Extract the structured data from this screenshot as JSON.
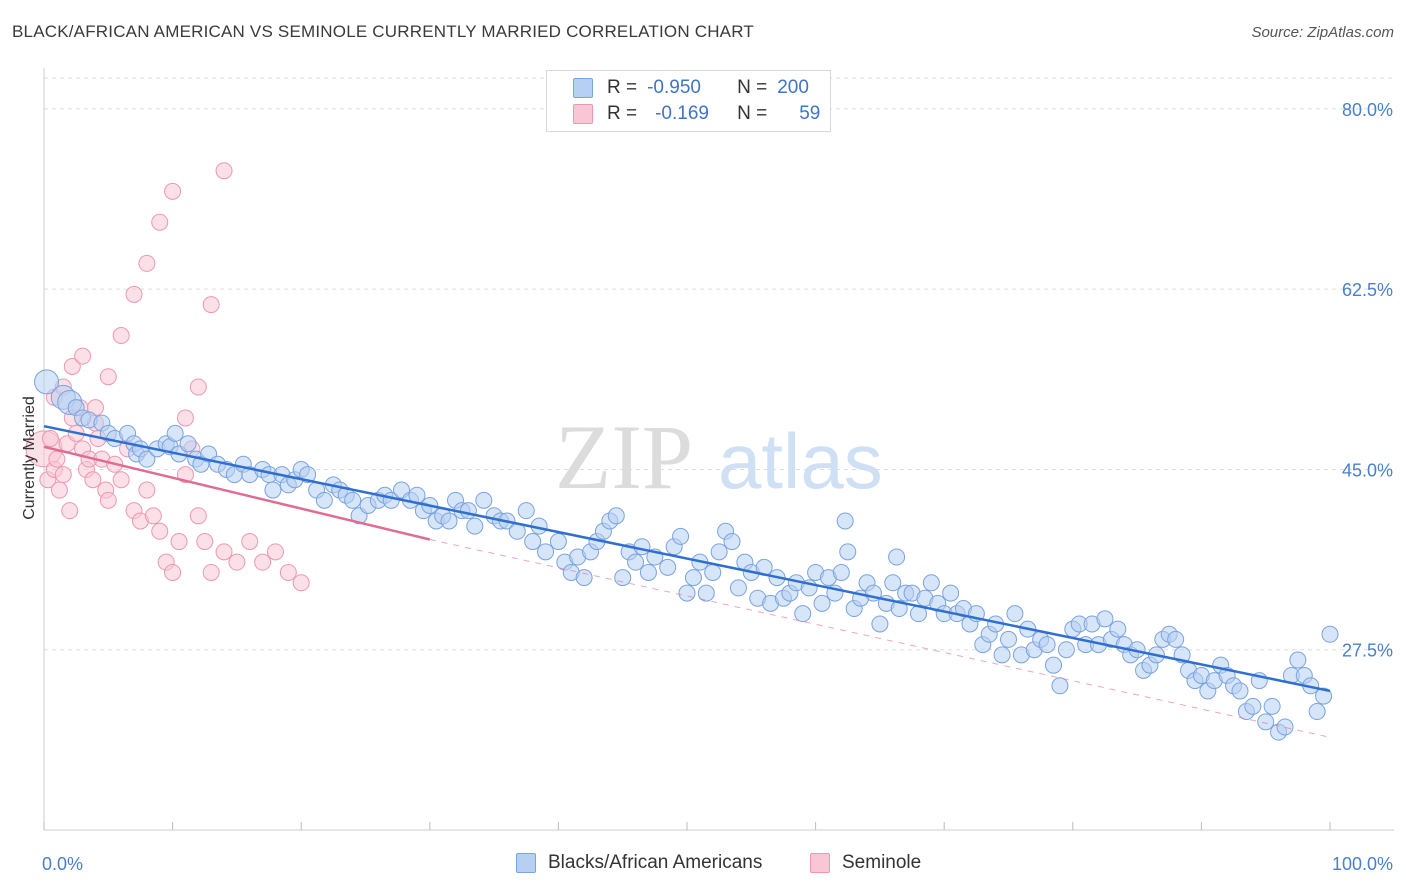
{
  "title": "BLACK/AFRICAN AMERICAN VS SEMINOLE CURRENTLY MARRIED CORRELATION CHART",
  "source": "Source: ZipAtlas.com",
  "watermark": {
    "zip": "ZIP",
    "atlas": "atlas"
  },
  "legend_top": [
    {
      "r_label": "R =",
      "r_value": "-0.950",
      "n_label": "N =",
      "n_value": "200",
      "color": "#8fb3e8"
    },
    {
      "r_label": "R =",
      "r_value": "-0.169",
      "n_label": "N =",
      "n_value": "59",
      "color": "#f4a7bf"
    }
  ],
  "colors": {
    "blue_fill": "#b7cff2",
    "blue_stroke": "#7aa3e0",
    "blue_line": "#2f6fd0",
    "pink_fill": "#f8c6d5",
    "pink_stroke": "#ef97b2",
    "pink_line": "#e06b93",
    "axis_text": "#4a7fcf",
    "grid": "#dddddd"
  },
  "chart_data": {
    "type": "scatter",
    "title": "BLACK/AFRICAN AMERICAN VS SEMINOLE CURRENTLY MARRIED CORRELATION CHART",
    "xlabel": "",
    "ylabel": "Currently Married",
    "xlim": [
      0,
      100
    ],
    "ylim": [
      10,
      83
    ],
    "x_tick_labels": [
      "0.0%",
      "100.0%"
    ],
    "y_ticks": [
      27.5,
      45.0,
      62.5,
      80.0
    ],
    "y_tick_labels": [
      "27.5%",
      "45.0%",
      "62.5%",
      "80.0%"
    ],
    "grid": true,
    "legend_position": "bottom",
    "series": [
      {
        "name": "Blacks/African Americans",
        "color": "#7aa3e0",
        "trend": {
          "x": [
            0,
            100
          ],
          "y": [
            49.2,
            23.5
          ]
        },
        "points": [
          [
            0.2,
            53.5
          ],
          [
            1.5,
            52
          ],
          [
            2,
            51.5
          ],
          [
            2.5,
            51
          ],
          [
            3,
            50
          ],
          [
            3.5,
            49.8
          ],
          [
            4.5,
            49.5
          ],
          [
            5,
            48.5
          ],
          [
            5.5,
            48
          ],
          [
            6.5,
            48.5
          ],
          [
            7,
            47.5
          ],
          [
            7.2,
            46.5
          ],
          [
            7.5,
            47
          ],
          [
            8,
            46
          ],
          [
            8.8,
            47
          ],
          [
            9.5,
            47.5
          ],
          [
            9.8,
            47.2
          ],
          [
            10.2,
            48.5
          ],
          [
            10.5,
            46.5
          ],
          [
            11.2,
            47.5
          ],
          [
            11.8,
            46
          ],
          [
            12.2,
            45.5
          ],
          [
            12.8,
            46.5
          ],
          [
            13.5,
            45.5
          ],
          [
            14.2,
            45
          ],
          [
            14.8,
            44.5
          ],
          [
            15.5,
            45.5
          ],
          [
            16,
            44.5
          ],
          [
            17,
            45
          ],
          [
            17.5,
            44.5
          ],
          [
            17.8,
            43
          ],
          [
            18.5,
            44.5
          ],
          [
            19,
            43.5
          ],
          [
            19.5,
            44
          ],
          [
            20,
            45
          ],
          [
            20.5,
            44.5
          ],
          [
            21.2,
            43
          ],
          [
            21.8,
            42
          ],
          [
            22.5,
            43.5
          ],
          [
            23,
            43
          ],
          [
            23.5,
            42.5
          ],
          [
            24,
            42
          ],
          [
            24.5,
            40.5
          ],
          [
            25.2,
            41.5
          ],
          [
            26,
            42
          ],
          [
            26.5,
            42.5
          ],
          [
            27,
            42
          ],
          [
            27.8,
            43
          ],
          [
            28.5,
            42
          ],
          [
            29,
            42.5
          ],
          [
            29.5,
            41
          ],
          [
            30,
            41.5
          ],
          [
            30.5,
            40
          ],
          [
            31,
            40.5
          ],
          [
            31.5,
            40
          ],
          [
            32,
            42
          ],
          [
            32.5,
            41
          ],
          [
            33,
            41
          ],
          [
            33.5,
            39.5
          ],
          [
            34.2,
            42
          ],
          [
            35,
            40.5
          ],
          [
            35.5,
            40
          ],
          [
            36,
            40
          ],
          [
            36.8,
            39
          ],
          [
            37.5,
            41
          ],
          [
            38,
            38
          ],
          [
            38.5,
            39.5
          ],
          [
            39,
            37
          ],
          [
            40,
            38
          ],
          [
            40.5,
            36
          ],
          [
            41,
            35
          ],
          [
            41.5,
            36.5
          ],
          [
            42,
            34.5
          ],
          [
            42.5,
            37
          ],
          [
            43,
            38
          ],
          [
            43.5,
            39
          ],
          [
            44,
            40
          ],
          [
            44.5,
            40.5
          ],
          [
            45,
            34.5
          ],
          [
            45.5,
            37
          ],
          [
            46,
            36
          ],
          [
            46.5,
            37.5
          ],
          [
            47,
            35
          ],
          [
            47.5,
            36.5
          ],
          [
            48.5,
            35.5
          ],
          [
            49,
            37.5
          ],
          [
            49.5,
            38.5
          ],
          [
            50,
            33
          ],
          [
            50.5,
            34.5
          ],
          [
            51,
            36
          ],
          [
            51.5,
            33
          ],
          [
            52,
            35
          ],
          [
            52.5,
            37
          ],
          [
            53,
            39
          ],
          [
            53.5,
            38
          ],
          [
            54,
            33.5
          ],
          [
            54.5,
            36
          ],
          [
            55,
            35
          ],
          [
            55.5,
            32.5
          ],
          [
            56,
            35.5
          ],
          [
            56.5,
            32
          ],
          [
            57,
            34.5
          ],
          [
            57.5,
            32.5
          ],
          [
            58,
            33
          ],
          [
            58.5,
            34
          ],
          [
            59,
            31
          ],
          [
            59.5,
            33.5
          ],
          [
            60,
            35
          ],
          [
            60.5,
            32
          ],
          [
            61,
            34.5
          ],
          [
            61.5,
            33
          ],
          [
            62,
            35
          ],
          [
            62.5,
            37
          ],
          [
            63,
            31.5
          ],
          [
            63.5,
            32.5
          ],
          [
            64,
            34
          ],
          [
            64.5,
            33
          ],
          [
            65,
            30
          ],
          [
            65.5,
            32
          ],
          [
            66,
            34
          ],
          [
            66.5,
            31.5
          ],
          [
            67,
            33
          ],
          [
            67.5,
            33
          ],
          [
            68,
            31
          ],
          [
            68.5,
            32.5
          ],
          [
            69,
            34
          ],
          [
            69.5,
            32
          ],
          [
            70,
            31
          ],
          [
            70.5,
            33
          ],
          [
            71,
            31
          ],
          [
            71.5,
            31.5
          ],
          [
            72,
            30
          ],
          [
            72.5,
            31
          ],
          [
            73,
            28
          ],
          [
            73.5,
            29
          ],
          [
            74,
            30
          ],
          [
            74.5,
            27
          ],
          [
            75,
            28.5
          ],
          [
            75.5,
            31
          ],
          [
            76,
            27
          ],
          [
            76.5,
            29.5
          ],
          [
            77,
            27.5
          ],
          [
            77.5,
            28.5
          ],
          [
            78,
            28
          ],
          [
            78.5,
            26
          ],
          [
            79,
            24
          ],
          [
            79.5,
            27.5
          ],
          [
            80,
            29.5
          ],
          [
            80.5,
            30
          ],
          [
            81,
            28
          ],
          [
            81.5,
            30
          ],
          [
            82,
            28
          ],
          [
            82.5,
            30.5
          ],
          [
            83,
            28.5
          ],
          [
            83.5,
            29.5
          ],
          [
            84,
            28
          ],
          [
            84.5,
            27
          ],
          [
            85,
            27.5
          ],
          [
            85.5,
            25.5
          ],
          [
            86,
            26
          ],
          [
            86.5,
            27
          ],
          [
            87,
            28.5
          ],
          [
            87.5,
            29
          ],
          [
            88,
            28.5
          ],
          [
            88.5,
            27
          ],
          [
            89,
            25.5
          ],
          [
            89.5,
            24.5
          ],
          [
            90,
            25
          ],
          [
            90.5,
            23.5
          ],
          [
            91,
            24.5
          ],
          [
            91.5,
            26
          ],
          [
            92,
            25
          ],
          [
            92.5,
            24
          ],
          [
            93,
            23.5
          ],
          [
            93.5,
            21.5
          ],
          [
            94,
            22
          ],
          [
            94.5,
            24.5
          ],
          [
            95,
            20.5
          ],
          [
            95.5,
            22
          ],
          [
            96,
            19.5
          ],
          [
            96.5,
            20
          ],
          [
            97,
            25
          ],
          [
            97.5,
            26.5
          ],
          [
            98,
            25
          ],
          [
            98.5,
            24
          ],
          [
            99,
            21.5
          ],
          [
            99.5,
            23
          ],
          [
            100,
            29
          ],
          [
            62.3,
            40
          ],
          [
            66.3,
            36.5
          ]
        ]
      },
      {
        "name": "Seminole",
        "color": "#ef97b2",
        "trend": {
          "x": [
            0,
            30
          ],
          "y": [
            47.2,
            38.2
          ]
        },
        "trend_extended": {
          "x": [
            30,
            100
          ],
          "y": [
            38.2,
            19.0
          ]
        },
        "points": [
          [
            0,
            47
          ],
          [
            0.3,
            44
          ],
          [
            0.5,
            48
          ],
          [
            0.8,
            45
          ],
          [
            1,
            46
          ],
          [
            1.2,
            43
          ],
          [
            1.5,
            44.5
          ],
          [
            1.8,
            47.5
          ],
          [
            2,
            41
          ],
          [
            2.2,
            50
          ],
          [
            2.5,
            48.5
          ],
          [
            2.8,
            51
          ],
          [
            3,
            47
          ],
          [
            3.3,
            45
          ],
          [
            3.5,
            46
          ],
          [
            3.8,
            44
          ],
          [
            4,
            49.5
          ],
          [
            4.2,
            48
          ],
          [
            4.5,
            46
          ],
          [
            4.8,
            43
          ],
          [
            5,
            42
          ],
          [
            5.5,
            45.5
          ],
          [
            6,
            44
          ],
          [
            6.5,
            47
          ],
          [
            7,
            41
          ],
          [
            7.5,
            40
          ],
          [
            8,
            43
          ],
          [
            8.5,
            40.5
          ],
          [
            9,
            39
          ],
          [
            9.5,
            36
          ],
          [
            10,
            35
          ],
          [
            10.5,
            38
          ],
          [
            11,
            44.5
          ],
          [
            11.5,
            47
          ],
          [
            12,
            40.5
          ],
          [
            12.5,
            38
          ],
          [
            13,
            35
          ],
          [
            14,
            37
          ],
          [
            15,
            36
          ],
          [
            16,
            38
          ],
          [
            17,
            36
          ],
          [
            18,
            37
          ],
          [
            19,
            35
          ],
          [
            20,
            34
          ],
          [
            0.8,
            52
          ],
          [
            1.5,
            53
          ],
          [
            2.2,
            55
          ],
          [
            3,
            56
          ],
          [
            4,
            51
          ],
          [
            5,
            54
          ],
          [
            6,
            58
          ],
          [
            7,
            62
          ],
          [
            8,
            65
          ],
          [
            9,
            69
          ],
          [
            10,
            72
          ],
          [
            11,
            50
          ],
          [
            12,
            53
          ],
          [
            13,
            61
          ],
          [
            14,
            74
          ]
        ]
      }
    ]
  }
}
